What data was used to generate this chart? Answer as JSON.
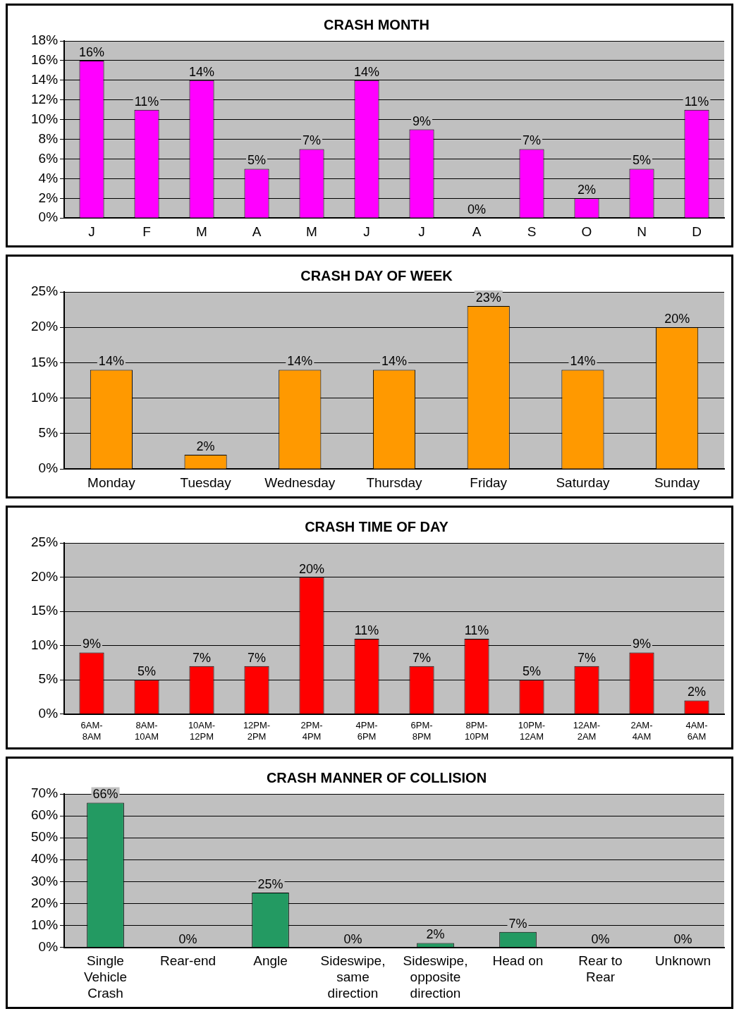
{
  "chart_data": [
    {
      "type": "bar",
      "title": "CRASH MONTH",
      "categories": [
        "J",
        "F",
        "M",
        "A",
        "M",
        "J",
        "J",
        "A",
        "S",
        "O",
        "N",
        "D"
      ],
      "series": [
        {
          "color": "#ff00ff",
          "values": [
            16,
            11,
            14,
            5,
            7,
            14,
            9,
            0,
            7,
            2,
            5,
            11
          ],
          "value_labels": [
            "16%",
            "11%",
            "14%",
            "5%",
            "7%",
            "14%",
            "9%",
            "0%",
            "7%",
            "2%",
            "5%",
            "11%"
          ]
        }
      ],
      "ylim": [
        0,
        18
      ],
      "yticks": [
        {
          "value": 0,
          "label": "0%"
        },
        {
          "value": 2,
          "label": "2%"
        },
        {
          "value": 4,
          "label": "4%"
        },
        {
          "value": 6,
          "label": "6%"
        },
        {
          "value": 8,
          "label": "8%"
        },
        {
          "value": 10,
          "label": "10%"
        },
        {
          "value": 12,
          "label": "12%"
        },
        {
          "value": 14,
          "label": "14%"
        },
        {
          "value": 16,
          "label": "16%"
        },
        {
          "value": 18,
          "label": "18%"
        }
      ],
      "grid": "y",
      "legend": false
    },
    {
      "type": "bar",
      "title": "CRASH DAY OF WEEK",
      "categories": [
        "Monday",
        "Tuesday",
        "Wednesday",
        "Thursday",
        "Friday",
        "Saturday",
        "Sunday"
      ],
      "series": [
        {
          "color": "#ff9900",
          "values": [
            14,
            2,
            14,
            14,
            23,
            14,
            20
          ],
          "value_labels": [
            "14%",
            "2%",
            "14%",
            "14%",
            "23%",
            "14%",
            "20%"
          ]
        }
      ],
      "ylim": [
        0,
        25
      ],
      "yticks": [
        {
          "value": 0,
          "label": "0%"
        },
        {
          "value": 5,
          "label": "5%"
        },
        {
          "value": 10,
          "label": "10%"
        },
        {
          "value": 15,
          "label": "15%"
        },
        {
          "value": 20,
          "label": "20%"
        },
        {
          "value": 25,
          "label": "25%"
        }
      ],
      "grid": "y",
      "legend": false
    },
    {
      "type": "bar",
      "title": "CRASH TIME OF DAY",
      "categories": [
        "6AM- 8AM",
        "8AM- 10AM",
        "10AM- 12PM",
        "12PM- 2PM",
        "2PM- 4PM",
        "4PM- 6PM",
        "6PM- 8PM",
        "8PM- 10PM",
        "10PM- 12AM",
        "12AM- 2AM",
        "2AM- 4AM",
        "4AM- 6AM"
      ],
      "series": [
        {
          "color": "#ff0000",
          "values": [
            9,
            5,
            7,
            7,
            20,
            11,
            7,
            11,
            5,
            7,
            9,
            2
          ],
          "value_labels": [
            "9%",
            "5%",
            "7%",
            "7%",
            "20%",
            "11%",
            "7%",
            "11%",
            "5%",
            "7%",
            "9%",
            "2%"
          ]
        }
      ],
      "ylim": [
        0,
        25
      ],
      "yticks": [
        {
          "value": 0,
          "label": "0%"
        },
        {
          "value": 5,
          "label": "5%"
        },
        {
          "value": 10,
          "label": "10%"
        },
        {
          "value": 15,
          "label": "15%"
        },
        {
          "value": 20,
          "label": "20%"
        },
        {
          "value": 25,
          "label": "25%"
        }
      ],
      "grid": "y",
      "legend": false
    },
    {
      "type": "bar",
      "title": "CRASH MANNER OF COLLISION",
      "categories": [
        "Single Vehicle Crash",
        "Rear-end",
        "Angle",
        "Sideswipe, same direction",
        "Sideswipe, opposite direction",
        "Head on",
        "Rear to Rear",
        "Unknown"
      ],
      "series": [
        {
          "color": "#239a62",
          "values": [
            66,
            0,
            25,
            0,
            2,
            7,
            0,
            0
          ],
          "value_labels": [
            "66%",
            "0%",
            "25%",
            "0%",
            "2%",
            "7%",
            "0%",
            "0%"
          ]
        }
      ],
      "ylim": [
        0,
        70
      ],
      "yticks": [
        {
          "value": 0,
          "label": "0%"
        },
        {
          "value": 10,
          "label": "10%"
        },
        {
          "value": 20,
          "label": "20%"
        },
        {
          "value": 30,
          "label": "30%"
        },
        {
          "value": 40,
          "label": "40%"
        },
        {
          "value": 50,
          "label": "50%"
        },
        {
          "value": 60,
          "label": "60%"
        },
        {
          "value": 70,
          "label": "70%"
        }
      ],
      "grid": "y",
      "legend": false
    }
  ]
}
